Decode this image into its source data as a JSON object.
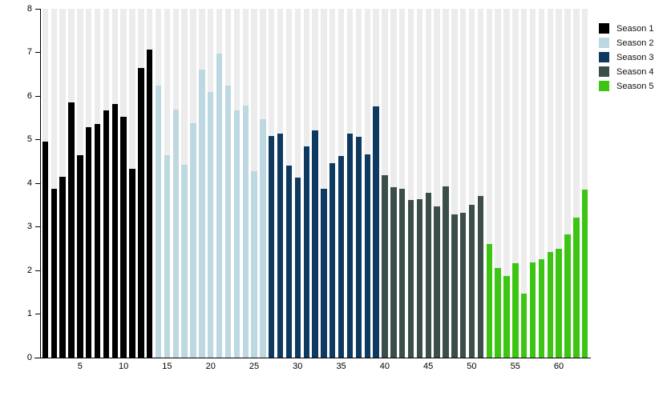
{
  "chart_data": {
    "type": "bar",
    "title": "",
    "xlabel": "",
    "ylabel": "",
    "ylim": [
      0,
      8
    ],
    "yticks": [
      "0",
      "1",
      "2",
      "3",
      "4",
      "5",
      "6",
      "7",
      "8"
    ],
    "xticks": [
      5,
      10,
      15,
      20,
      25,
      30,
      35,
      40,
      45,
      50,
      55,
      60
    ],
    "x_range": [
      1,
      63
    ],
    "grid": "off",
    "legend_position": "outside-top-right",
    "background_track_color": "#ececec",
    "series": [
      {
        "name": "Season 1",
        "color": "#000000",
        "start_x": 1,
        "values": [
          4.95,
          3.87,
          4.15,
          5.85,
          4.64,
          5.28,
          5.35,
          5.67,
          5.82,
          5.53,
          4.33,
          6.65,
          7.06
        ]
      },
      {
        "name": "Season 2",
        "color": "#bdd8e0",
        "start_x": 14,
        "values": [
          6.24,
          4.64,
          5.68,
          4.42,
          5.37,
          6.6,
          6.1,
          6.97,
          6.24,
          5.67,
          5.78,
          4.28,
          5.47
        ]
      },
      {
        "name": "Season 3",
        "color": "#0e3a61",
        "start_x": 27,
        "values": [
          5.08,
          5.13,
          4.4,
          4.12,
          4.85,
          5.22,
          3.88,
          4.46,
          4.62,
          5.14,
          5.06,
          4.66,
          5.77
        ]
      },
      {
        "name": "Season 4",
        "color": "#3b4e49",
        "start_x": 40,
        "values": [
          4.18,
          3.91,
          3.88,
          3.61,
          3.64,
          3.78,
          3.47,
          3.93,
          3.29,
          3.33,
          3.5,
          3.71
        ]
      },
      {
        "name": "Season 5",
        "color": "#3dc513",
        "start_x": 52,
        "values": [
          2.6,
          2.06,
          1.88,
          2.16,
          1.47,
          2.18,
          2.25,
          2.43,
          2.5,
          2.82,
          3.21,
          3.86
        ]
      }
    ]
  }
}
